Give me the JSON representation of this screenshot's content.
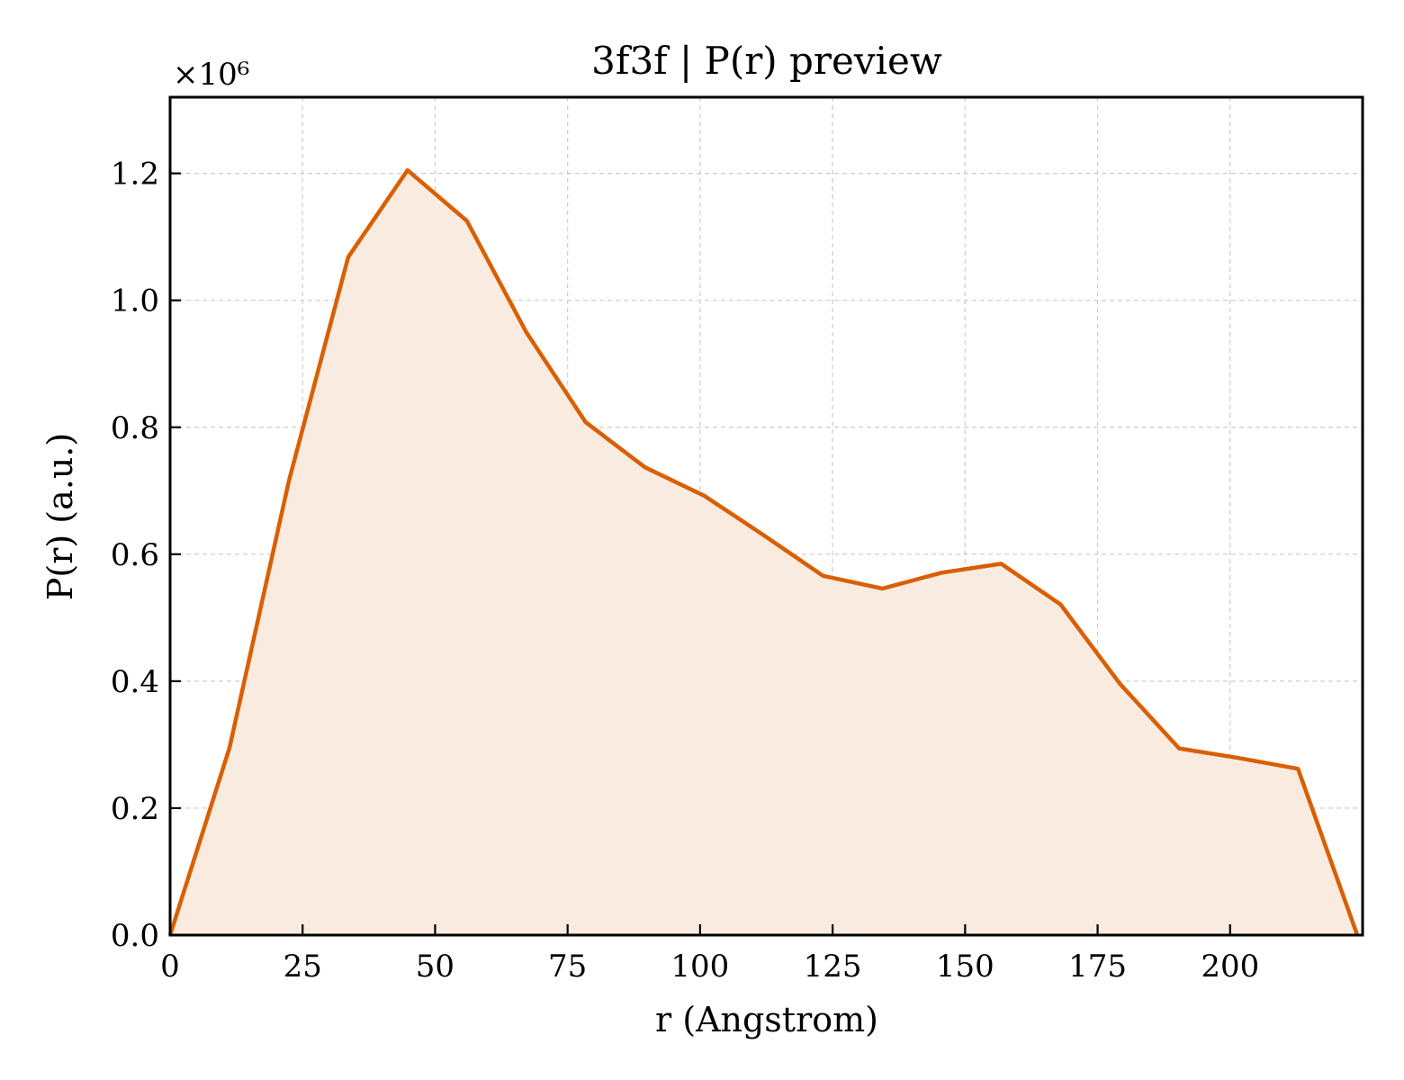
{
  "chart_data": {
    "type": "area",
    "title": "3f3f | P(r) preview",
    "xlabel": "r (Angstrom)",
    "ylabel": "P(r) (a.u.)",
    "y_multiplier_label": "×10⁶",
    "xlim": [
      0,
      225
    ],
    "ylim": [
      0,
      1.32
    ],
    "xticks": [
      0,
      25,
      50,
      75,
      100,
      125,
      150,
      175,
      200
    ],
    "xtick_labels": [
      "0",
      "25",
      "50",
      "75",
      "100",
      "125",
      "150",
      "175",
      "200"
    ],
    "yticks": [
      0.0,
      0.2,
      0.4,
      0.6,
      0.8,
      1.0,
      1.2
    ],
    "ytick_labels": [
      "0.0",
      "0.2",
      "0.4",
      "0.6",
      "0.8",
      "1.0",
      "1.2"
    ],
    "grid": true,
    "line_color": "#d95f02",
    "fill_color": "#f9ebe0",
    "x": [
      0,
      11.2,
      22.4,
      33.6,
      44.8,
      56.0,
      67.2,
      78.4,
      89.6,
      100.8,
      112.0,
      123.2,
      134.4,
      145.6,
      156.8,
      168.0,
      179.2,
      190.4,
      201.6,
      212.8,
      224.0
    ],
    "y": [
      0.0,
      0.295,
      0.715,
      1.068,
      1.205,
      1.125,
      0.95,
      0.808,
      0.737,
      0.692,
      0.63,
      0.566,
      0.546,
      0.571,
      0.585,
      0.521,
      0.396,
      0.294,
      0.279,
      0.262,
      0.0
    ]
  }
}
